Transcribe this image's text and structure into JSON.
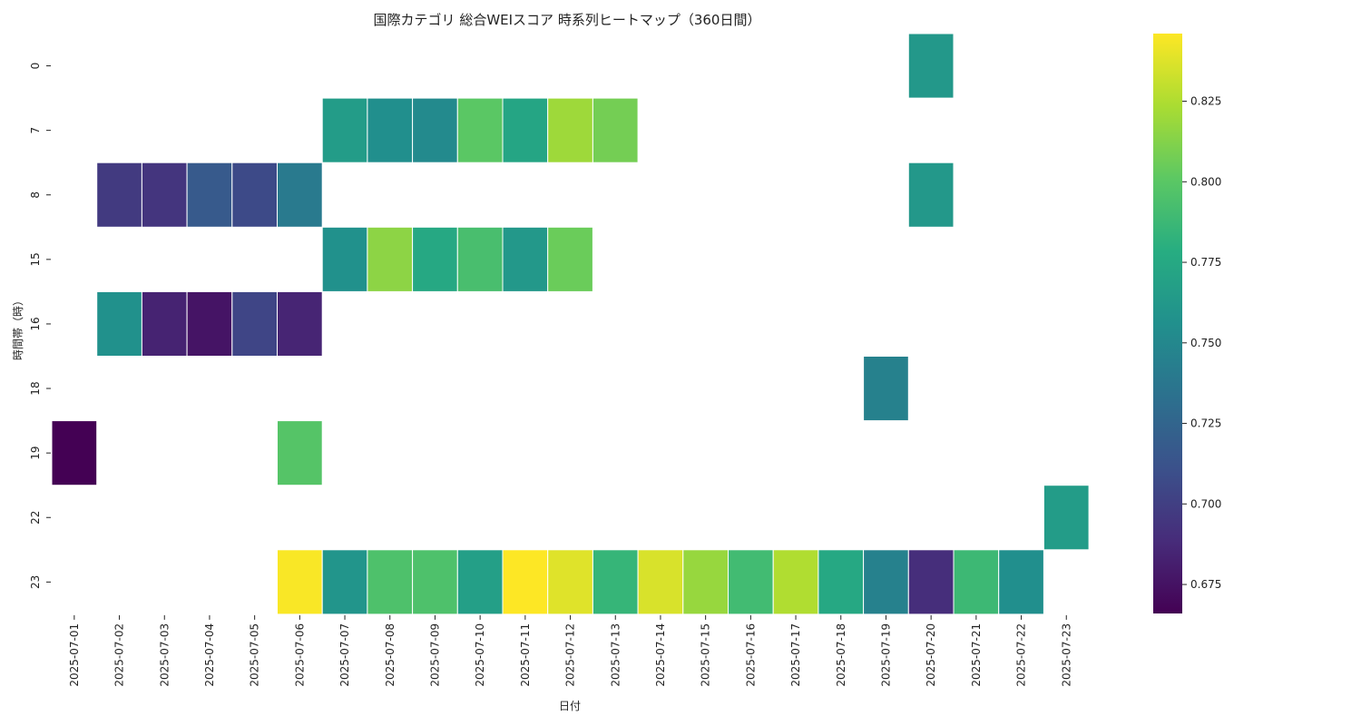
{
  "chart_data": {
    "type": "heatmap",
    "title": "国際カテゴリ 総合WEIスコア 時系列ヒートマップ（360日間）",
    "xlabel": "日付",
    "ylabel": "時間帯（時）",
    "x": [
      "2025-07-01",
      "2025-07-02",
      "2025-07-03",
      "2025-07-04",
      "2025-07-05",
      "2025-07-06",
      "2025-07-07",
      "2025-07-08",
      "2025-07-09",
      "2025-07-10",
      "2025-07-11",
      "2025-07-12",
      "2025-07-13",
      "2025-07-14",
      "2025-07-15",
      "2025-07-16",
      "2025-07-17",
      "2025-07-18",
      "2025-07-19",
      "2025-07-20",
      "2025-07-21",
      "2025-07-22",
      "2025-07-23"
    ],
    "y": [
      "0",
      "7",
      "8",
      "15",
      "16",
      "18",
      "19",
      "22",
      "23"
    ],
    "values": [
      [
        null,
        null,
        null,
        null,
        null,
        null,
        null,
        null,
        null,
        null,
        null,
        null,
        null,
        null,
        null,
        null,
        null,
        null,
        null,
        0.762,
        null,
        null,
        null
      ],
      [
        null,
        null,
        null,
        null,
        null,
        null,
        0.765,
        0.755,
        0.752,
        0.8,
        0.772,
        0.82,
        0.808,
        null,
        null,
        null,
        null,
        null,
        null,
        null,
        null,
        null,
        null
      ],
      [
        null,
        0.697,
        0.694,
        0.717,
        0.707,
        0.74,
        null,
        null,
        null,
        null,
        null,
        null,
        null,
        null,
        null,
        null,
        null,
        null,
        null,
        0.762,
        null,
        null,
        null
      ],
      [
        null,
        null,
        null,
        null,
        null,
        null,
        0.757,
        0.815,
        0.775,
        0.793,
        0.762,
        0.805,
        null,
        null,
        null,
        null,
        null,
        null,
        null,
        null,
        null,
        null,
        null
      ],
      [
        null,
        0.757,
        0.684,
        0.676,
        0.704,
        0.685,
        null,
        null,
        null,
        null,
        null,
        null,
        null,
        null,
        null,
        null,
        null,
        null,
        null,
        null,
        null,
        null,
        null
      ],
      [
        null,
        null,
        null,
        null,
        null,
        null,
        null,
        null,
        null,
        null,
        null,
        null,
        null,
        null,
        null,
        null,
        null,
        null,
        0.745,
        null,
        null,
        null,
        null
      ],
      [
        0.666,
        null,
        null,
        null,
        null,
        0.798,
        null,
        null,
        null,
        null,
        null,
        null,
        null,
        null,
        null,
        null,
        null,
        null,
        null,
        null,
        null,
        null,
        null
      ],
      [
        null,
        null,
        null,
        null,
        null,
        null,
        null,
        null,
        null,
        null,
        null,
        null,
        null,
        null,
        null,
        null,
        null,
        null,
        null,
        null,
        null,
        null,
        0.765
      ],
      [
        null,
        null,
        null,
        null,
        null,
        0.845,
        0.76,
        0.795,
        0.795,
        0.768,
        0.846,
        0.838,
        0.785,
        0.836,
        0.818,
        0.79,
        0.825,
        0.775,
        0.745,
        0.69,
        0.788,
        0.755,
        null
      ]
    ],
    "colormap": "viridis",
    "colorbar": {
      "vmin": 0.666,
      "vmax": 0.846,
      "ticks": [
        "0.675",
        "0.700",
        "0.725",
        "0.750",
        "0.775",
        "0.800",
        "0.825"
      ]
    },
    "grid": false
  }
}
